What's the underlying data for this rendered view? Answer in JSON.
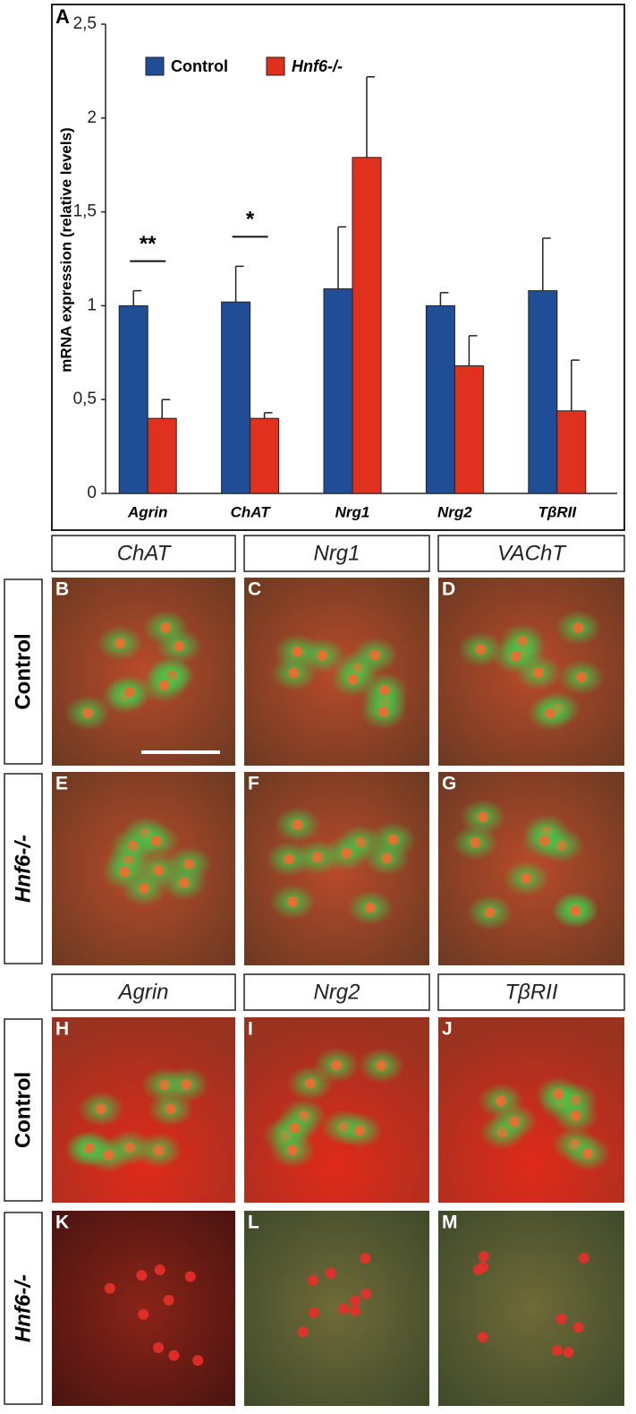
{
  "chart_data": {
    "type": "bar",
    "panel_label": "A",
    "ylabel": "mRNA expression (relative levels)",
    "categories": [
      "Agrin",
      "ChAT",
      "Nrg1",
      "Nrg2",
      "TβRII"
    ],
    "series": [
      {
        "name": "Control",
        "color": "#1f4e96",
        "values": [
          1.0,
          1.02,
          1.09,
          1.0,
          1.08
        ],
        "errors": [
          0.08,
          0.19,
          0.33,
          0.07,
          0.28
        ]
      },
      {
        "name": "Hnf6-/-",
        "color": "#e0301e",
        "values": [
          0.4,
          0.4,
          1.79,
          0.68,
          0.44
        ],
        "errors": [
          0.1,
          0.03,
          0.43,
          0.16,
          0.27
        ]
      }
    ],
    "ylim": [
      0,
      2.5
    ],
    "yticks": [
      0,
      {
        "value": 0.5,
        "label": "0,5"
      },
      1,
      {
        "value": 1.5,
        "label": "1,5"
      },
      2,
      {
        "value": 2.5,
        "label": "2,5"
      }
    ],
    "annotations": [
      {
        "category": 0,
        "text": "**"
      },
      {
        "category": 1,
        "text": "*"
      }
    ],
    "legend": "top"
  },
  "figure": {
    "header_rows": [
      [
        "ChAT",
        "Nrg1",
        "VAChT"
      ],
      [
        "Agrin",
        "Nrg2",
        "TβRII"
      ]
    ],
    "row_labels": [
      "Control",
      "Hnf6-/-",
      "Control",
      "Hnf6-/-"
    ],
    "panel_letters": [
      "B",
      "C",
      "D",
      "E",
      "F",
      "G",
      "H",
      "I",
      "J",
      "K",
      "L",
      "M"
    ]
  }
}
